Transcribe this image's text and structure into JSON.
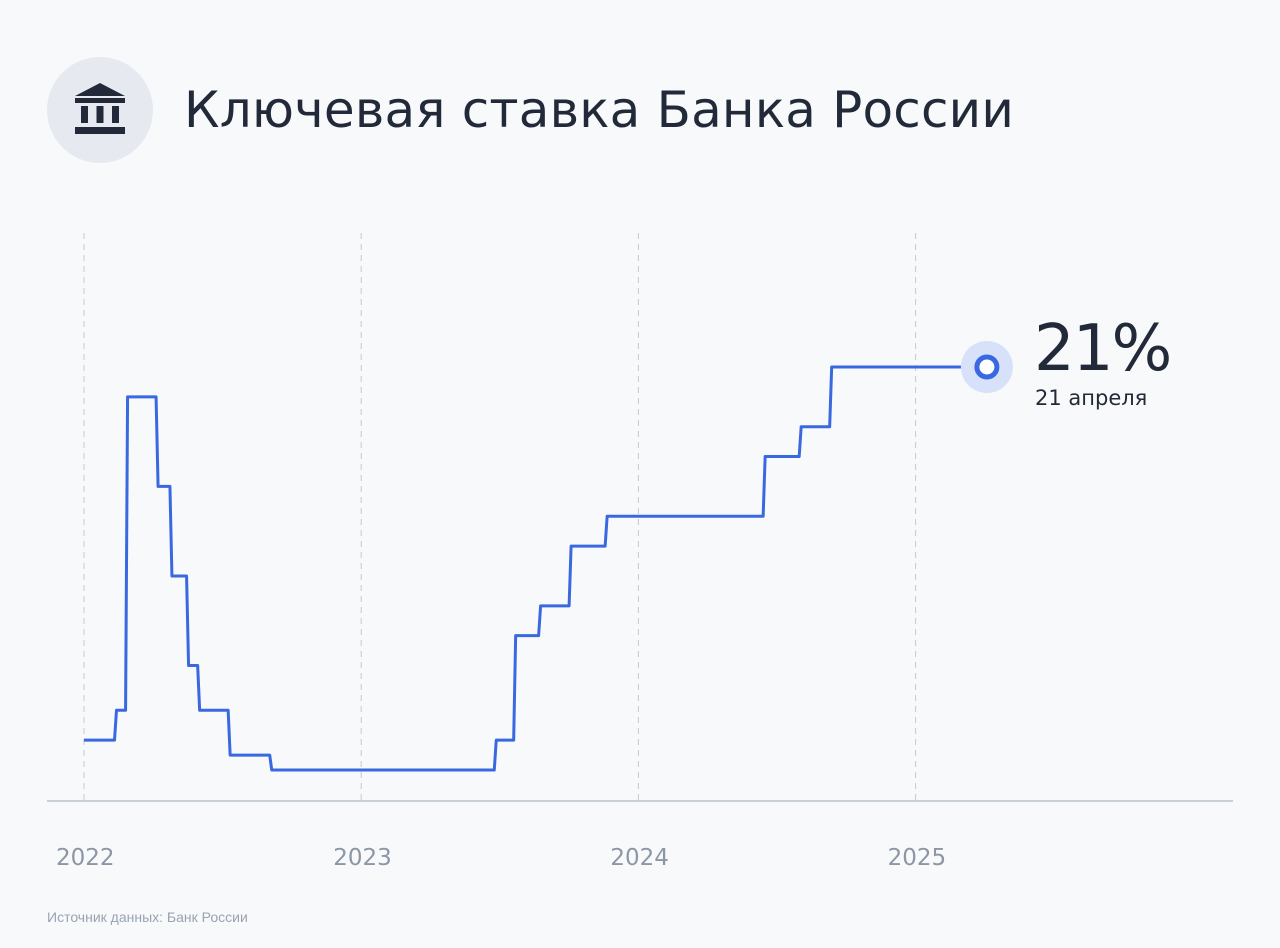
{
  "header": {
    "title": "Ключевая ставка Банка России",
    "icon": "bank-building-icon"
  },
  "latest": {
    "value_text": "21%",
    "date_text": "21 апреля"
  },
  "source": "Источник данных: Банк России",
  "colors": {
    "line": "#3a68e0",
    "marker_halo": "#d7e1fa",
    "grid": "#c4c9d2",
    "axis": "#bcc2cc",
    "tick_text": "#8d96a5",
    "text": "#222a3a"
  },
  "chart_data": {
    "type": "line",
    "step": true,
    "title": "Ключевая ставка Банка России",
    "xlabel": "",
    "ylabel": "",
    "x_ticks": [
      "2022",
      "2023",
      "2024",
      "2025"
    ],
    "x_tick_values": [
      2022.0,
      2023.0,
      2024.0,
      2025.0
    ],
    "xlim": [
      2022.0,
      2026.1
    ],
    "ylim": [
      6.5,
      25.5
    ],
    "grid": "vertical dashed",
    "series": [
      {
        "x": [
          2022.0,
          2022.11,
          2022.15,
          2022.26,
          2022.31,
          2022.37,
          2022.41,
          2022.52,
          2022.67,
          2023.48,
          2023.55,
          2023.64,
          2023.75,
          2023.88,
          2024.45,
          2024.58,
          2024.69,
          2025.25
        ],
        "y": [
          8.5,
          9.5,
          20,
          17,
          14,
          11,
          9.5,
          8,
          7.5,
          8.5,
          12,
          13,
          15,
          16,
          18,
          19,
          21,
          21
        ]
      }
    ],
    "end_marker": {
      "x": 2025.25,
      "y": 21,
      "label": "21%",
      "sublabel": "21 апреля"
    }
  }
}
